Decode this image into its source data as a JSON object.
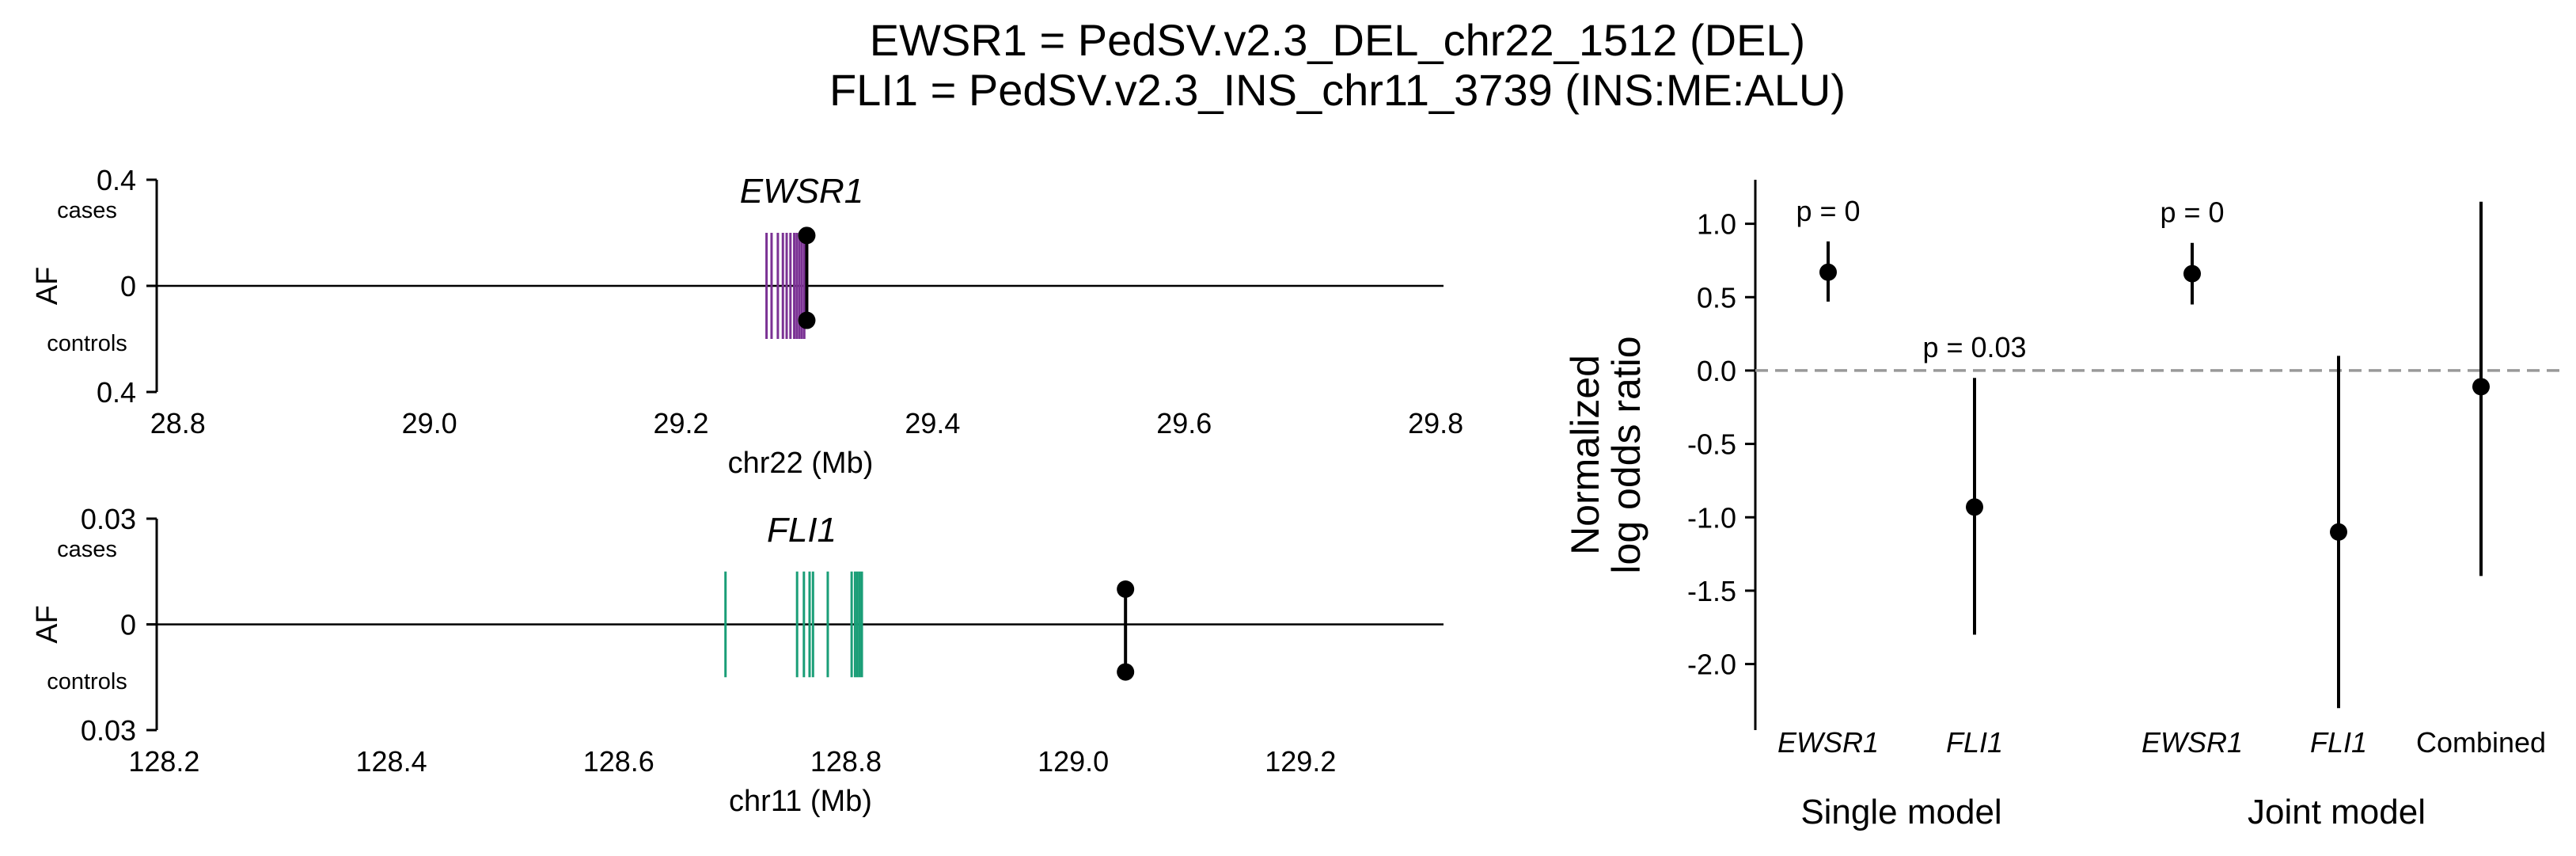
{
  "title_lines": [
    "EWSR1 = PedSV.v2.3_DEL_chr22_1512 (DEL)",
    "FLI1 = PedSV.v2.3_INS_chr11_3739 (INS:ME:ALU)"
  ],
  "chart_data": [
    {
      "type": "locus",
      "gene": "EWSR1",
      "xlabel": "chr22 (Mb)",
      "ylabel": "AF",
      "y_top_label": "cases",
      "y_bottom_label": "controls",
      "y_ticks": [
        "0.4",
        "0",
        "0.4"
      ],
      "xlim": [
        28.78,
        29.81
      ],
      "ylim": [
        -0.4,
        0.4
      ],
      "x_ticks": [
        28.8,
        29.0,
        29.2,
        29.4,
        29.6,
        29.8
      ],
      "x_tick_labels": [
        "28.8",
        "29.0",
        "29.2",
        "29.4",
        "29.6",
        "29.8"
      ],
      "gene_color": "#7b3294",
      "exons": [
        29.268,
        29.272,
        29.277,
        29.281,
        29.284,
        29.287,
        29.29,
        29.292,
        29.294,
        29.296,
        29.298
      ],
      "exon_half_height": 0.2,
      "variant": {
        "position": 29.3,
        "af_cases": 0.19,
        "af_controls": 0.13
      }
    },
    {
      "type": "locus",
      "gene": "FLI1",
      "xlabel": "chr11 (Mb)",
      "ylabel": "AF",
      "y_top_label": "cases",
      "y_bottom_label": "controls",
      "y_ticks": [
        "0.03",
        "0",
        "0.03"
      ],
      "xlim": [
        128.19,
        129.33
      ],
      "ylim": [
        -0.03,
        0.03
      ],
      "x_ticks": [
        128.2,
        128.4,
        128.6,
        128.8,
        129.0,
        129.2
      ],
      "x_tick_labels": [
        "128.2",
        "128.4",
        "128.6",
        "128.8",
        "129.0",
        "129.2"
      ],
      "gene_color": "#1a9e77",
      "exons": [
        128.694,
        128.757,
        128.763,
        128.768,
        128.771,
        128.784,
        128.805,
        128.808,
        128.81,
        128.812,
        128.814
      ],
      "exon_half_height": 0.015,
      "variant": {
        "position": 129.046,
        "af_cases": 0.01,
        "af_controls": 0.0135
      }
    },
    {
      "type": "forest",
      "ylabel": "Normalized\nlog odds ratio",
      "ylim": [
        -2.45,
        1.3
      ],
      "y_ticks": [
        1.0,
        0.5,
        0.0,
        -0.5,
        -1.0,
        -1.5,
        -2.0
      ],
      "y_tick_labels": [
        "1.0",
        "0.5",
        "0.0",
        "-0.5",
        "-1.0",
        "-1.5",
        "-2.0"
      ],
      "reference_line": 0,
      "groups": [
        {
          "label": "Single model",
          "start": 0,
          "end": 1
        },
        {
          "label": "Joint model",
          "start": 2,
          "end": 4
        }
      ],
      "points": [
        {
          "label": "EWSR1",
          "italic": true,
          "estimate": 0.67,
          "lower": 0.47,
          "upper": 0.88,
          "pvalue": "p = 0"
        },
        {
          "label": "FLI1",
          "italic": true,
          "estimate": -0.93,
          "lower": -1.8,
          "upper": -0.05,
          "pvalue": "p = 0.03"
        },
        {
          "label": "EWSR1",
          "italic": true,
          "estimate": 0.66,
          "lower": 0.45,
          "upper": 0.87,
          "pvalue": "p = 0"
        },
        {
          "label": "FLI1",
          "italic": true,
          "estimate": -1.1,
          "lower": -2.3,
          "upper": 0.1,
          "pvalue": ""
        },
        {
          "label": "Combined",
          "italic": false,
          "estimate": -0.11,
          "lower": -1.4,
          "upper": 1.15,
          "pvalue": ""
        }
      ]
    }
  ]
}
